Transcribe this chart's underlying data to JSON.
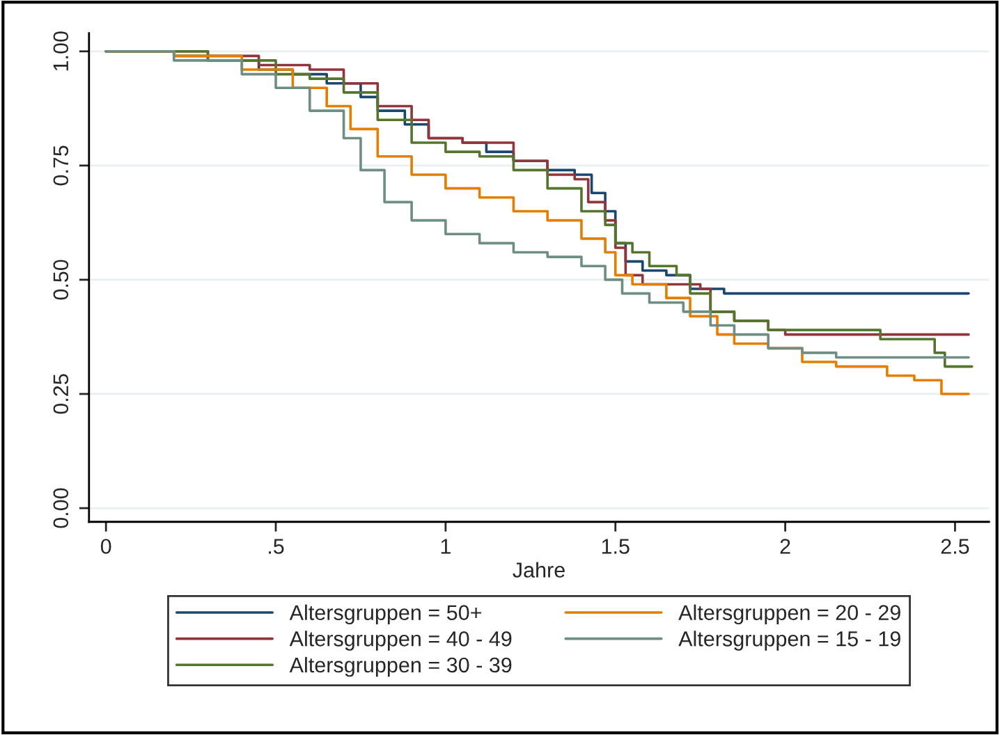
{
  "chart_data": {
    "type": "step",
    "xlabel": "Jahre",
    "xlim": [
      -0.05,
      2.6
    ],
    "xticks": [
      0,
      {
        "value": 0.5,
        "label": ".5"
      },
      1,
      1.5,
      2,
      2.5
    ],
    "ylim": [
      -0.03,
      1.04
    ],
    "yticks": [
      {
        "value": 0,
        "label": "0.00"
      },
      {
        "value": 0.25,
        "label": "0.25"
      },
      {
        "value": 0.5,
        "label": "0.50"
      },
      {
        "value": 0.75,
        "label": "0.75"
      },
      {
        "value": 1,
        "label": "1.00"
      }
    ],
    "grid": "y",
    "legend": "bottom",
    "series": [
      {
        "name": "Altersgruppen = 50+",
        "color": "#1a476f",
        "x": [
          0,
          0.2,
          0.3,
          0.45,
          0.55,
          0.65,
          0.75,
          0.8,
          0.88,
          0.95,
          1.05,
          1.12,
          1.2,
          1.3,
          1.38,
          1.43,
          1.47,
          1.5,
          1.53,
          1.58,
          1.65,
          1.72,
          1.82,
          2.54
        ],
        "values": [
          1,
          0.99,
          0.98,
          0.96,
          0.95,
          0.93,
          0.9,
          0.87,
          0.84,
          0.81,
          0.8,
          0.78,
          0.76,
          0.74,
          0.73,
          0.69,
          0.65,
          0.58,
          0.54,
          0.52,
          0.51,
          0.48,
          0.47,
          0.47
        ]
      },
      {
        "name": "Altersgruppen = 40 - 49",
        "color": "#90353b",
        "x": [
          0,
          0.3,
          0.45,
          0.6,
          0.7,
          0.8,
          0.9,
          0.95,
          1.05,
          1.2,
          1.3,
          1.38,
          1.42,
          1.47,
          1.5,
          1.53,
          1.58,
          1.75,
          1.78,
          1.85,
          1.95,
          2.0,
          2.54
        ],
        "values": [
          1,
          0.99,
          0.97,
          0.96,
          0.93,
          0.88,
          0.85,
          0.81,
          0.8,
          0.76,
          0.73,
          0.72,
          0.67,
          0.63,
          0.57,
          0.51,
          0.49,
          0.48,
          0.43,
          0.41,
          0.39,
          0.38,
          0.38
        ]
      },
      {
        "name": "Altersgruppen = 30 - 39",
        "color": "#55752f",
        "x": [
          0,
          0.3,
          0.5,
          0.6,
          0.7,
          0.8,
          0.9,
          1.0,
          1.1,
          1.2,
          1.3,
          1.4,
          1.47,
          1.5,
          1.55,
          1.6,
          1.68,
          1.72,
          1.78,
          1.85,
          1.95,
          2.27,
          2.28,
          2.43,
          2.44,
          2.47,
          2.55
        ],
        "values": [
          1,
          0.98,
          0.95,
          0.94,
          0.91,
          0.85,
          0.8,
          0.78,
          0.77,
          0.74,
          0.7,
          0.65,
          0.62,
          0.58,
          0.56,
          0.53,
          0.51,
          0.47,
          0.43,
          0.41,
          0.39,
          0.39,
          0.37,
          0.37,
          0.34,
          0.31,
          0.31
        ]
      },
      {
        "name": "Altersgruppen = 20 - 29",
        "color": "#e37e00",
        "x": [
          0,
          0.2,
          0.4,
          0.55,
          0.65,
          0.72,
          0.8,
          0.9,
          1.0,
          1.1,
          1.2,
          1.3,
          1.4,
          1.47,
          1.5,
          1.55,
          1.65,
          1.72,
          1.8,
          1.85,
          1.95,
          2.05,
          2.15,
          2.27,
          2.3,
          2.37,
          2.38,
          2.45,
          2.46,
          2.54
        ],
        "values": [
          1,
          0.99,
          0.96,
          0.92,
          0.88,
          0.83,
          0.77,
          0.73,
          0.7,
          0.68,
          0.65,
          0.63,
          0.59,
          0.56,
          0.51,
          0.49,
          0.46,
          0.42,
          0.38,
          0.36,
          0.35,
          0.32,
          0.31,
          0.31,
          0.29,
          0.29,
          0.28,
          0.28,
          0.25,
          0.25
        ]
      },
      {
        "name": "Altersgruppen = 15 - 19",
        "color": "#6e8e84",
        "x": [
          0,
          0.2,
          0.4,
          0.5,
          0.6,
          0.7,
          0.75,
          0.82,
          0.9,
          1.0,
          1.1,
          1.2,
          1.3,
          1.4,
          1.47,
          1.52,
          1.6,
          1.7,
          1.78,
          1.85,
          1.95,
          2.05,
          2.15,
          2.54
        ],
        "values": [
          1,
          0.98,
          0.95,
          0.92,
          0.87,
          0.81,
          0.74,
          0.67,
          0.63,
          0.6,
          0.58,
          0.56,
          0.55,
          0.53,
          0.5,
          0.47,
          0.45,
          0.43,
          0.4,
          0.38,
          0.35,
          0.34,
          0.33,
          0.33
        ]
      }
    ]
  }
}
